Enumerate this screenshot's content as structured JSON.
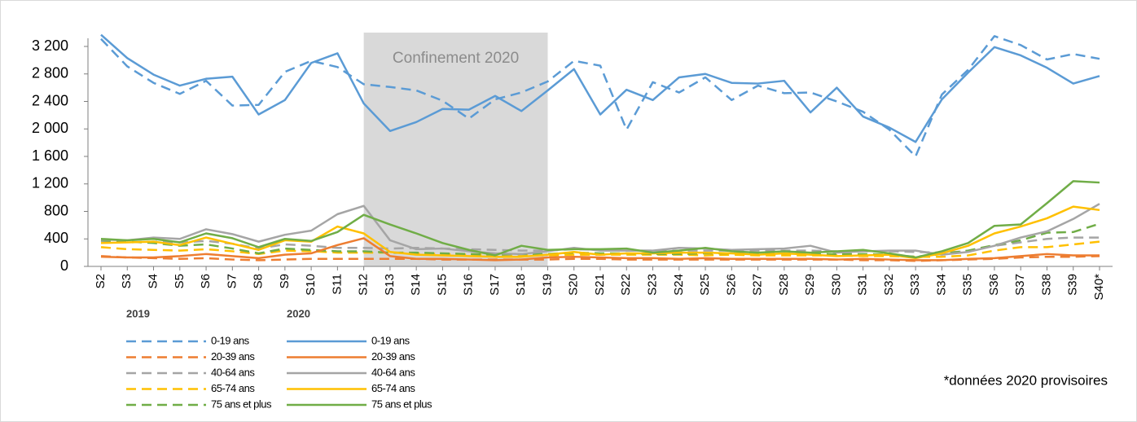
{
  "chart_data": {
    "type": "line",
    "categories": [
      "S2",
      "S3",
      "S4",
      "S5",
      "S6",
      "S7",
      "S8",
      "S9",
      "S10",
      "S11",
      "S12",
      "S13",
      "S14",
      "S15",
      "S16",
      "S17",
      "S18",
      "S19",
      "S20",
      "S21",
      "S22",
      "S23",
      "S24",
      "S25",
      "S26",
      "S27",
      "S28",
      "S29",
      "S30",
      "S31",
      "S32",
      "S33",
      "S34",
      "S35",
      "S36",
      "S37",
      "S38",
      "S39",
      "S40*"
    ],
    "ylim": [
      0,
      3200
    ],
    "yticks": [
      0,
      400,
      800,
      {
        "value": 1200,
        "label": "1 200"
      },
      {
        "value": 1600,
        "label": "1 600"
      },
      {
        "value": 2000,
        "label": "2 000"
      },
      {
        "value": 2400,
        "label": "2 400"
      },
      {
        "value": 2800,
        "label": "2 800"
      },
      {
        "value": 3200,
        "label": "3 200"
      }
    ],
    "shaded_period": {
      "from": "S12",
      "to": "S19",
      "label": "Confinement 2020",
      "color": "#d9d9d9"
    },
    "legend_groups": [
      "2019",
      "2020"
    ],
    "note": "*données 2020 provisoires",
    "series": [
      {
        "name": "0-19 ans",
        "group": "2019",
        "dashed": true,
        "color": "#5b9bd5",
        "values": [
          3310,
          2910,
          2670,
          2510,
          2700,
          2340,
          2350,
          2830,
          2990,
          2900,
          2650,
          2610,
          2560,
          2410,
          2150,
          2430,
          2530,
          2690,
          2990,
          2920,
          1990,
          2680,
          2530,
          2750,
          2420,
          2630,
          2520,
          2530,
          2400,
          2250,
          1990,
          1600,
          2500,
          2860,
          3350,
          3220,
          3010,
          3090,
          3020
        ]
      },
      {
        "name": "20-39 ans",
        "group": "2019",
        "dashed": true,
        "color": "#ed7d31",
        "values": [
          150,
          130,
          120,
          110,
          120,
          100,
          90,
          100,
          110,
          110,
          110,
          110,
          110,
          100,
          100,
          100,
          100,
          100,
          110,
          110,
          100,
          100,
          100,
          100,
          100,
          100,
          100,
          100,
          100,
          90,
          90,
          80,
          90,
          100,
          110,
          130,
          140,
          140,
          150
        ]
      },
      {
        "name": "40-64 ans",
        "group": "2019",
        "dashed": true,
        "color": "#a5a5a5",
        "values": [
          370,
          350,
          360,
          350,
          370,
          330,
          260,
          320,
          300,
          270,
          270,
          260,
          270,
          260,
          250,
          240,
          230,
          230,
          250,
          240,
          230,
          230,
          230,
          230,
          230,
          230,
          230,
          230,
          220,
          220,
          220,
          210,
          200,
          220,
          300,
          350,
          400,
          420,
          420
        ]
      },
      {
        "name": "65-74 ans",
        "group": "2019",
        "dashed": true,
        "color": "#ffc000",
        "values": [
          280,
          250,
          240,
          230,
          250,
          220,
          180,
          230,
          220,
          200,
          200,
          200,
          190,
          180,
          170,
          170,
          170,
          160,
          170,
          170,
          170,
          170,
          170,
          160,
          170,
          160,
          160,
          160,
          160,
          150,
          150,
          140,
          140,
          160,
          230,
          280,
          280,
          320,
          360
        ]
      },
      {
        "name": "75 ans et plus",
        "group": "2019",
        "dashed": true,
        "color": "#70ad47",
        "values": [
          380,
          360,
          340,
          300,
          320,
          260,
          190,
          260,
          240,
          220,
          220,
          200,
          200,
          190,
          180,
          170,
          180,
          180,
          200,
          190,
          190,
          180,
          180,
          190,
          190,
          180,
          190,
          180,
          180,
          180,
          170,
          140,
          180,
          230,
          310,
          380,
          490,
          500,
          620
        ]
      },
      {
        "name": "0-19 ans",
        "group": "2020",
        "dashed": false,
        "color": "#5b9bd5",
        "values": [
          3370,
          3030,
          2790,
          2630,
          2730,
          2760,
          2210,
          2420,
          2960,
          3100,
          2370,
          1970,
          2100,
          2290,
          2280,
          2480,
          2260,
          2560,
          2870,
          2210,
          2570,
          2420,
          2750,
          2800,
          2670,
          2660,
          2700,
          2240,
          2600,
          2180,
          2020,
          1810,
          2430,
          2820,
          3190,
          3070,
          2890,
          2660,
          2770
        ]
      },
      {
        "name": "20-39 ans",
        "group": "2020",
        "dashed": false,
        "color": "#ed7d31",
        "values": [
          140,
          130,
          130,
          150,
          180,
          150,
          120,
          170,
          190,
          310,
          410,
          150,
          110,
          110,
          100,
          90,
          100,
          130,
          140,
          130,
          120,
          120,
          110,
          120,
          110,
          110,
          110,
          110,
          100,
          110,
          100,
          90,
          90,
          110,
          120,
          150,
          180,
          160,
          160
        ]
      },
      {
        "name": "40-64 ans",
        "group": "2020",
        "dashed": false,
        "color": "#a5a5a5",
        "values": [
          390,
          380,
          420,
          400,
          540,
          470,
          360,
          460,
          520,
          760,
          880,
          380,
          250,
          260,
          220,
          190,
          180,
          220,
          270,
          230,
          230,
          230,
          270,
          260,
          240,
          250,
          260,
          300,
          200,
          220,
          230,
          230,
          170,
          210,
          300,
          420,
          510,
          690,
          910
        ]
      },
      {
        "name": "65-74 ans",
        "group": "2020",
        "dashed": false,
        "color": "#ffc000",
        "values": [
          340,
          350,
          360,
          310,
          420,
          330,
          240,
          380,
          360,
          580,
          480,
          210,
          170,
          160,
          150,
          140,
          140,
          170,
          210,
          170,
          190,
          190,
          200,
          200,
          190,
          170,
          190,
          170,
          150,
          160,
          170,
          120,
          190,
          300,
          480,
          580,
          700,
          870,
          820
        ]
      },
      {
        "name": "75 ans et plus",
        "group": "2020",
        "dashed": false,
        "color": "#70ad47",
        "values": [
          400,
          380,
          400,
          350,
          480,
          410,
          280,
          400,
          370,
          500,
          750,
          610,
          480,
          340,
          240,
          160,
          300,
          240,
          250,
          250,
          260,
          200,
          230,
          270,
          220,
          200,
          220,
          200,
          220,
          240,
          190,
          130,
          220,
          340,
          590,
          610,
          920,
          1240,
          1220
        ]
      }
    ]
  }
}
